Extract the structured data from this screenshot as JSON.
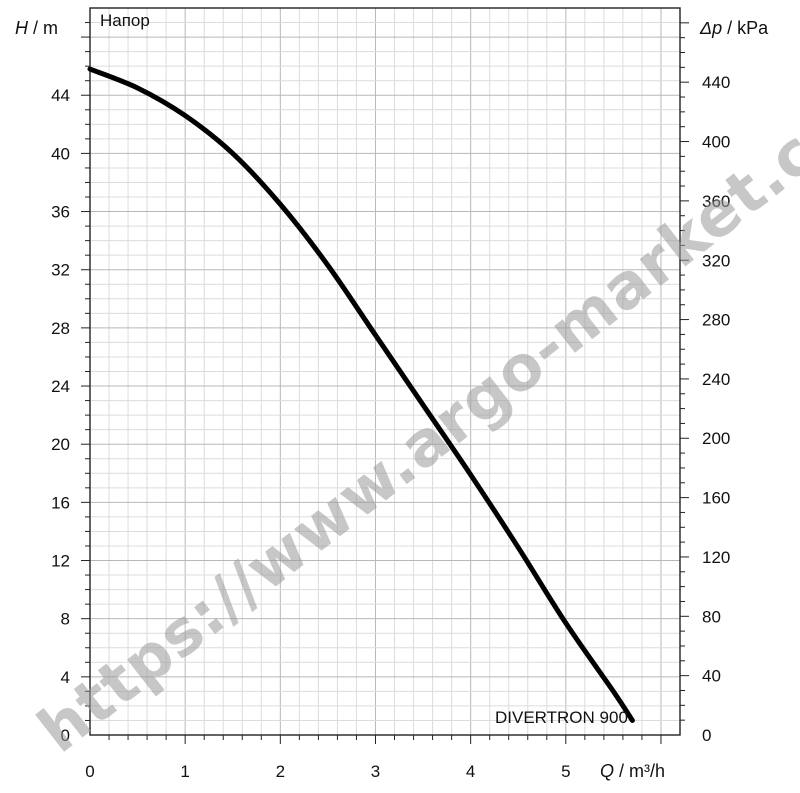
{
  "chart_data": {
    "type": "line",
    "title": "Напор",
    "series": [
      {
        "name": "DIVERTRON 900",
        "x": [
          0,
          0.5,
          1.0,
          1.5,
          2.0,
          2.5,
          3.0,
          3.5,
          4.0,
          4.5,
          5.0,
          5.5,
          5.7
        ],
        "y": [
          45.8,
          44.5,
          42.6,
          40.0,
          36.5,
          32.3,
          27.5,
          22.7,
          17.9,
          12.9,
          7.7,
          3.0,
          1.0
        ]
      }
    ],
    "x_axis": {
      "label_var": "Q",
      "label_unit": " / m³/h",
      "range": [
        0,
        6.2
      ],
      "ticks": [
        "0",
        "1",
        "2",
        "3",
        "4",
        "5"
      ],
      "tick_values": [
        0,
        1,
        2,
        3,
        4,
        5
      ]
    },
    "y_left": {
      "label_var": "H",
      "label_unit": " / m",
      "range": [
        0,
        50
      ],
      "ticks": [
        "0",
        "4",
        "8",
        "12",
        "16",
        "20",
        "24",
        "28",
        "32",
        "36",
        "40",
        "44"
      ],
      "tick_values": [
        0,
        4,
        8,
        12,
        16,
        20,
        24,
        28,
        32,
        36,
        40,
        44
      ]
    },
    "y_right": {
      "label_var": "Δp",
      "label_unit": " / kPa",
      "ticks": [
        "0",
        "40",
        "80",
        "120",
        "160",
        "200",
        "240",
        "280",
        "320",
        "360",
        "400",
        "440"
      ],
      "tick_values_in_m": [
        0,
        4.08,
        8.16,
        12.24,
        16.33,
        20.41,
        24.49,
        28.57,
        32.65,
        36.73,
        40.82,
        44.9
      ]
    },
    "grid": true,
    "watermark": "https://www.argo-market.com"
  }
}
